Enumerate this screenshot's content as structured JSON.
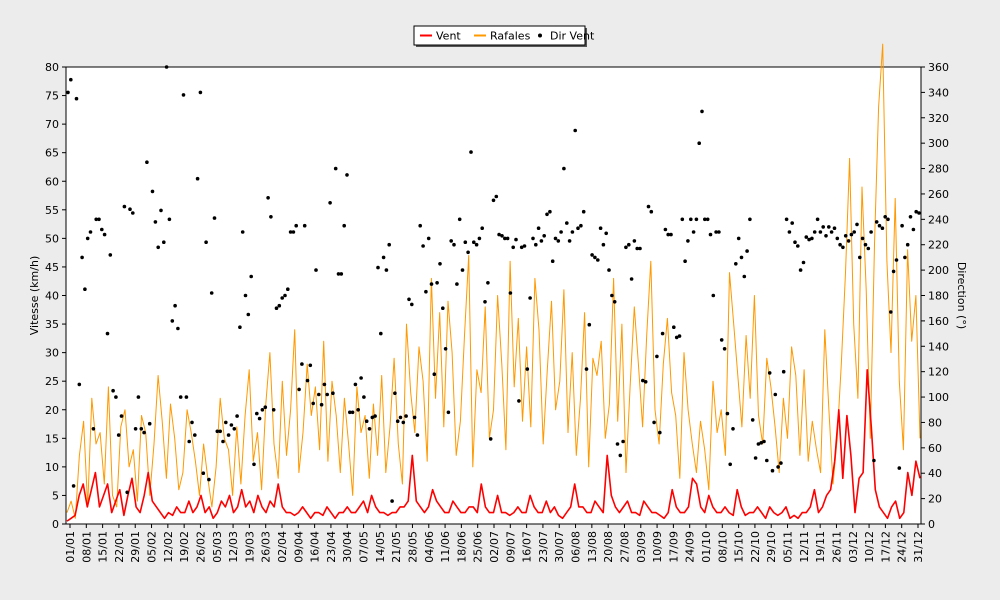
{
  "chart_data": {
    "type": "line",
    "ylabel": "Vitesse (km/h)",
    "y2label": "Direction (°)",
    "ylim": [
      0,
      80
    ],
    "y2lim": [
      0,
      360
    ],
    "yticks": [
      0,
      5,
      10,
      15,
      20,
      25,
      30,
      35,
      40,
      45,
      50,
      55,
      60,
      65,
      70,
      75,
      80
    ],
    "y2ticks": [
      0,
      20,
      40,
      60,
      80,
      100,
      120,
      140,
      160,
      180,
      200,
      220,
      240,
      260,
      280,
      300,
      320,
      340,
      360
    ],
    "legend_position": "top-center",
    "legend": [
      {
        "name": "Vent",
        "color": "#ff0000",
        "kind": "line"
      },
      {
        "name": "Rafales",
        "color": "#ff9900",
        "kind": "line"
      },
      {
        "name": "Dir Vent",
        "color": "#000000",
        "kind": "dot"
      }
    ],
    "x_tick_labels": [
      "01/01",
      "08/01",
      "15/01",
      "22/01",
      "29/01",
      "05/02",
      "12/02",
      "19/02",
      "26/02",
      "05/03",
      "12/03",
      "19/03",
      "26/03",
      "02/04",
      "09/04",
      "16/04",
      "23/04",
      "30/04",
      "07/05",
      "14/05",
      "21/05",
      "28/05",
      "04/06",
      "11/06",
      "18/06",
      "25/06",
      "02/07",
      "09/07",
      "16/07",
      "23/07",
      "30/07",
      "06/08",
      "13/08",
      "20/08",
      "27/08",
      "03/09",
      "10/09",
      "17/09",
      "24/09",
      "01/10",
      "08/10",
      "15/10",
      "22/10",
      "29/10",
      "05/11",
      "12/11",
      "19/11",
      "26/11",
      "03/12",
      "10/12",
      "17/12",
      "24/12",
      "31/12"
    ],
    "series": [
      {
        "name": "Vent",
        "color": "#ff0000",
        "values": [
          0.5,
          1,
          1.5,
          5,
          7,
          3,
          6,
          9,
          3,
          5,
          7,
          2,
          4,
          6,
          1.5,
          5,
          8,
          3,
          2,
          5,
          9,
          4,
          3,
          2,
          1,
          2,
          1.5,
          3,
          2,
          2,
          4,
          2,
          3,
          5,
          2,
          3,
          1,
          2,
          4,
          3,
          5,
          2,
          3,
          6,
          3,
          4,
          2,
          5,
          3,
          2,
          4,
          3,
          7,
          3,
          2,
          2,
          1.5,
          2,
          3,
          2,
          1,
          2,
          2,
          1.5,
          3,
          2,
          1,
          2,
          2,
          3,
          2,
          2,
          3,
          4,
          2,
          5,
          3,
          2,
          2,
          1.5,
          2,
          2,
          3,
          3,
          4,
          12,
          4,
          3,
          2,
          3,
          6,
          4,
          3,
          2,
          2,
          4,
          3,
          2,
          2,
          3,
          3,
          2,
          7,
          3,
          2,
          2,
          5,
          2,
          2,
          1.5,
          2,
          3,
          2,
          2,
          5,
          3,
          2,
          2,
          4,
          2,
          3,
          1.5,
          1,
          2,
          3,
          7,
          3,
          3,
          2,
          2,
          4,
          3,
          2,
          12,
          5,
          3,
          2,
          3,
          4,
          2,
          2,
          1.5,
          4,
          3,
          2,
          2,
          1.5,
          1,
          2,
          6,
          3,
          2,
          2,
          3,
          8,
          7,
          3,
          2,
          5,
          3,
          2,
          2,
          3,
          2,
          1.5,
          6,
          3,
          1.5,
          2,
          2,
          3,
          2,
          1,
          3,
          2,
          1.5,
          2,
          3,
          1,
          1.5,
          1,
          2,
          2,
          3,
          6,
          2,
          3,
          5,
          6,
          11,
          20,
          8,
          19,
          12,
          2,
          8,
          9,
          27,
          17,
          6,
          3,
          2,
          1,
          3,
          4,
          1,
          2,
          9,
          5,
          11,
          8
        ]
      },
      {
        "name": "Rafales",
        "color": "#ff9900",
        "values": [
          2,
          4,
          1,
          12,
          18,
          3,
          22,
          14,
          16,
          7,
          24,
          5,
          3,
          17,
          20,
          10,
          13,
          4,
          19,
          16,
          5,
          14,
          26,
          18,
          8,
          21,
          15,
          6,
          9,
          20,
          16,
          11,
          5,
          14,
          8,
          3,
          10,
          22,
          15,
          13,
          5,
          17,
          7,
          19,
          27,
          11,
          16,
          6,
          21,
          30,
          14,
          8,
          25,
          12,
          20,
          34,
          9,
          16,
          28,
          19,
          24,
          13,
          32,
          11,
          25,
          19,
          9,
          22,
          14,
          5,
          24,
          16,
          19,
          8,
          21,
          12,
          26,
          9,
          17,
          29,
          14,
          7,
          35,
          23,
          16,
          31,
          25,
          11,
          43,
          22,
          37,
          17,
          39,
          30,
          12,
          18,
          33,
          47,
          10,
          27,
          23,
          38,
          15,
          20,
          40,
          28,
          13,
          46,
          24,
          36,
          18,
          31,
          17,
          43,
          34,
          14,
          27,
          39,
          20,
          25,
          41,
          16,
          30,
          12,
          22,
          37,
          10,
          29,
          26,
          32,
          15,
          21,
          43,
          18,
          35,
          9,
          24,
          38,
          28,
          17,
          33,
          46,
          20,
          14,
          28,
          36,
          23,
          19,
          8,
          30,
          20,
          14,
          9,
          18,
          13,
          6,
          25,
          16,
          20,
          12,
          44,
          35,
          26,
          17,
          33,
          22,
          40,
          19,
          14,
          29,
          24,
          17,
          9,
          22,
          15,
          31,
          26,
          12,
          27,
          11,
          18,
          13,
          9,
          34,
          20,
          7,
          15,
          28,
          44,
          64,
          35,
          22,
          59,
          41,
          15,
          49,
          73,
          84,
          46,
          30,
          57,
          25,
          13,
          48,
          32,
          40,
          15
        ]
      }
    ],
    "direction_deg": [
      340,
      350,
      30,
      335,
      110,
      210,
      185,
      225,
      230,
      75,
      240,
      240,
      232,
      228,
      150,
      212,
      105,
      100,
      70,
      85,
      250,
      25,
      248,
      245,
      75,
      100,
      75,
      72,
      285,
      79,
      262,
      238,
      218,
      247,
      222,
      360,
      240,
      160,
      172,
      154,
      100,
      338,
      100,
      65,
      80,
      70,
      272,
      340,
      40,
      222,
      35,
      182,
      241,
      73,
      73,
      65,
      80,
      70,
      78,
      75,
      85,
      155,
      230,
      180,
      165,
      195,
      47,
      87,
      83,
      90,
      92,
      257,
      242,
      90,
      170,
      172,
      178,
      180,
      185,
      230,
      230,
      235,
      106,
      126,
      235,
      113,
      125,
      95,
      200,
      102,
      94,
      110,
      102,
      253,
      103,
      280,
      197,
      197,
      235,
      275,
      88,
      88,
      110,
      90,
      115,
      100,
      81,
      75,
      84,
      85,
      202,
      150,
      210,
      200,
      220,
      18,
      103,
      81,
      84,
      80,
      85,
      177,
      173,
      84,
      70,
      235,
      219,
      183,
      225,
      189,
      118,
      190,
      205,
      170,
      138,
      88,
      223,
      220,
      189,
      240,
      200,
      222,
      214,
      293,
      222,
      220,
      225,
      233,
      175,
      190,
      67,
      255,
      258,
      228,
      227,
      225,
      225,
      182,
      218,
      224,
      97,
      218,
      219,
      122,
      178,
      225,
      220,
      233,
      223,
      227,
      244,
      246,
      207,
      225,
      223,
      230,
      280,
      237,
      223,
      230,
      310,
      233,
      235,
      246,
      122,
      157,
      212,
      210,
      208,
      233,
      220,
      229,
      200,
      180,
      175,
      63,
      54,
      65,
      218,
      220,
      193,
      223,
      217,
      217,
      113,
      112,
      250,
      246,
      80,
      132,
      72,
      150,
      232,
      228,
      228,
      155,
      147,
      148,
      240,
      207,
      223,
      240,
      230,
      240,
      300,
      325,
      240,
      240,
      228,
      180,
      230,
      230,
      145,
      138,
      87,
      47,
      75,
      205,
      225,
      210,
      195,
      215,
      240,
      82,
      52,
      63,
      64,
      65,
      50,
      119,
      42,
      102,
      45,
      48,
      120,
      240,
      230,
      237,
      222,
      219,
      200,
      206,
      226,
      224,
      225,
      230,
      240,
      230,
      234,
      227,
      234,
      230,
      233,
      225,
      220,
      218,
      227,
      223,
      228,
      230,
      236,
      210,
      225,
      220,
      217,
      230,
      50,
      238,
      235,
      233,
      242,
      240,
      167,
      199,
      208,
      44,
      235,
      210,
      220,
      242,
      232,
      246,
      245
    ]
  }
}
